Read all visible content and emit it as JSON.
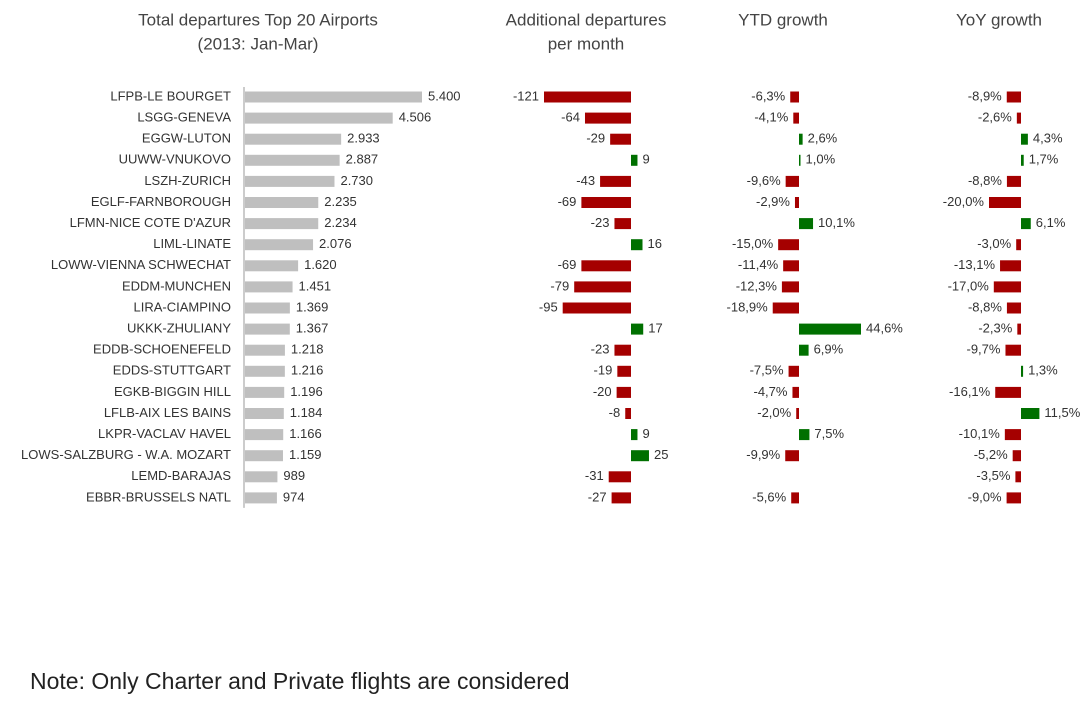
{
  "chart_data": [
    {
      "type": "bar",
      "orientation": "horizontal",
      "title": "Total departures Top 20 Airports",
      "subtitle": "(2013: Jan-Mar)",
      "categories": [
        "LFPB-LE BOURGET",
        "LSGG-GENEVA",
        "EGGW-LUTON",
        "UUWW-VNUKOVO",
        "LSZH-ZURICH",
        "EGLF-FARNBOROUGH",
        "LFMN-NICE COTE D'AZUR",
        "LIML-LINATE",
        "LOWW-VIENNA SCHWECHAT",
        "EDDM-MUNCHEN",
        "LIRA-CIAMPINO",
        "UKKK-ZHULIANY",
        "EDDB-SCHOENEFELD",
        "EDDS-STUTTGART",
        "EGKB-BIGGIN HILL",
        "LFLB-AIX LES BAINS",
        "LKPR-VACLAV HAVEL",
        "LOWS-SALZBURG - W.A. MOZART",
        "LEMD-BARAJAS",
        "EBBR-BRUSSELS NATL"
      ],
      "values": [
        5400,
        4506,
        2933,
        2887,
        2730,
        2235,
        2234,
        2076,
        1620,
        1451,
        1369,
        1367,
        1218,
        1216,
        1196,
        1184,
        1166,
        1159,
        989,
        974
      ],
      "labels": [
        "5.400",
        "4.506",
        "2.933",
        "2.887",
        "2.730",
        "2.235",
        "2.234",
        "2.076",
        "1.620",
        "1.451",
        "1.369",
        "1.367",
        "1.218",
        "1.216",
        "1.196",
        "1.184",
        "1.166",
        "1.159",
        "989",
        "974"
      ],
      "color": "#bfbfbf"
    },
    {
      "type": "bar",
      "orientation": "horizontal",
      "title": "Additional departures per month",
      "values": [
        -121,
        -64,
        -29,
        9,
        -43,
        -69,
        -23,
        16,
        -69,
        -79,
        -95,
        17,
        -23,
        -19,
        -20,
        -8,
        9,
        25,
        -31,
        -27
      ],
      "labels": [
        "-121",
        "-64",
        "-29",
        "9",
        "-43",
        "-69",
        "-23",
        "16",
        "-69",
        "-79",
        "-95",
        "17",
        "-23",
        "-19",
        "-20",
        "-8",
        "9",
        "25",
        "-31",
        "-27"
      ]
    },
    {
      "type": "bar",
      "orientation": "horizontal",
      "title": "YTD growth",
      "values": [
        -6.3,
        -4.1,
        2.6,
        1.0,
        -9.6,
        -2.9,
        10.1,
        -15.0,
        -11.4,
        -12.3,
        -18.9,
        44.6,
        6.9,
        -7.5,
        -4.7,
        -2.0,
        7.5,
        -9.9,
        null,
        -5.6
      ],
      "labels": [
        "-6,3%",
        "-4,1%",
        "2,6%",
        "1,0%",
        "-9,6%",
        "-2,9%",
        "10,1%",
        "-15,0%",
        "-11,4%",
        "-12,3%",
        "-18,9%",
        "44,6%",
        "6,9%",
        "-7,5%",
        "-4,7%",
        "-2,0%",
        "7,5%",
        "-9,9%",
        "",
        "-5,6%"
      ]
    },
    {
      "type": "bar",
      "orientation": "horizontal",
      "title": "YoY growth",
      "values": [
        -8.9,
        -2.6,
        4.3,
        1.7,
        -8.8,
        -20.0,
        6.1,
        -3.0,
        -13.1,
        -17.0,
        -8.8,
        -2.3,
        -9.7,
        1.3,
        -16.1,
        11.5,
        -10.1,
        -5.2,
        -3.5,
        -9.0
      ],
      "labels": [
        "-8,9%",
        "-2,6%",
        "4,3%",
        "1,7%",
        "-8,8%",
        "-20,0%",
        "6,1%",
        "-3,0%",
        "-13,1%",
        "-17,0%",
        "-8,8%",
        "-2,3%",
        "-9,7%",
        "1,3%",
        "-16,1%",
        "11,5%",
        "-10,1%",
        "-5,2%",
        "-3,5%",
        "-9,0%"
      ]
    }
  ],
  "colors": {
    "positive": "#007000",
    "negative": "#a50000",
    "neutral": "#bfbfbf"
  },
  "note": "Note: Only Charter and Private flights are considered"
}
